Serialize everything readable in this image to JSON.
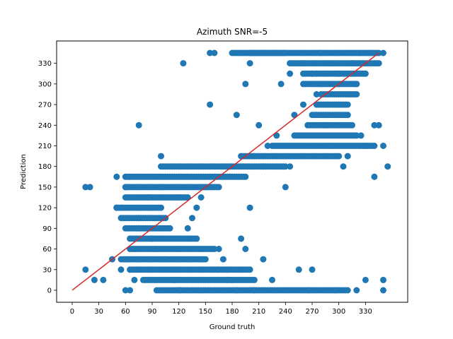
{
  "chart_data": {
    "type": "scatter",
    "title": "Azimuth SNR=-5",
    "xlabel": "Ground truth",
    "ylabel": "Prediction",
    "xlim": [
      -17.5,
      377.5
    ],
    "ylim": [
      -17.5,
      362.5
    ],
    "x_ticks": [
      0,
      30,
      60,
      90,
      120,
      150,
      180,
      210,
      240,
      270,
      300,
      330
    ],
    "y_ticks": [
      0,
      30,
      60,
      90,
      120,
      150,
      180,
      210,
      240,
      270,
      300,
      330
    ],
    "grid": false,
    "marker_color": "#1f77b4",
    "line_color": "#d62728",
    "reference_line": {
      "x": [
        0,
        345
      ],
      "y": [
        0,
        345
      ]
    },
    "points": [
      [
        15,
        30
      ],
      [
        15,
        150
      ],
      [
        20,
        150
      ],
      [
        25,
        15
      ],
      [
        35,
        15
      ],
      [
        45,
        45
      ],
      [
        50,
        165
      ],
      [
        50,
        120
      ],
      [
        55,
        120
      ],
      [
        60,
        150
      ],
      [
        65,
        165
      ],
      [
        55,
        30
      ],
      [
        60,
        0
      ],
      [
        65,
        0
      ],
      [
        70,
        15
      ],
      [
        70,
        60
      ],
      [
        75,
        90
      ],
      [
        75,
        105
      ],
      [
        80,
        105
      ],
      [
        85,
        135
      ],
      [
        90,
        75
      ],
      [
        95,
        60
      ],
      [
        100,
        195
      ],
      [
        100,
        150
      ],
      [
        105,
        45
      ],
      [
        110,
        30
      ],
      [
        115,
        15
      ],
      [
        120,
        0
      ],
      [
        125,
        330
      ],
      [
        130,
        90
      ],
      [
        135,
        105
      ],
      [
        140,
        120
      ],
      [
        145,
        135
      ],
      [
        150,
        150
      ],
      [
        155,
        270
      ],
      [
        155,
        345
      ],
      [
        160,
        345
      ],
      [
        160,
        165
      ],
      [
        165,
        60
      ],
      [
        170,
        45
      ],
      [
        175,
        30
      ],
      [
        180,
        15
      ],
      [
        185,
        0
      ],
      [
        190,
        75
      ],
      [
        195,
        60
      ],
      [
        200,
        120
      ],
      [
        205,
        195
      ],
      [
        210,
        240
      ],
      [
        215,
        180
      ],
      [
        220,
        210
      ],
      [
        230,
        225
      ],
      [
        240,
        150
      ],
      [
        245,
        180
      ],
      [
        250,
        255
      ],
      [
        255,
        30
      ],
      [
        260,
        270
      ],
      [
        265,
        0
      ],
      [
        270,
        30
      ],
      [
        275,
        285
      ],
      [
        280,
        300
      ],
      [
        285,
        240
      ],
      [
        290,
        210
      ],
      [
        295,
        0
      ],
      [
        300,
        315
      ],
      [
        305,
        180
      ],
      [
        310,
        195
      ],
      [
        315,
        330
      ],
      [
        320,
        300
      ],
      [
        325,
        225
      ],
      [
        330,
        210
      ],
      [
        335,
        345
      ],
      [
        340,
        240
      ],
      [
        345,
        240
      ],
      [
        350,
        210
      ],
      [
        350,
        345
      ],
      [
        350,
        0
      ],
      [
        350,
        15
      ],
      [
        355,
        180
      ],
      [
        75,
        240
      ],
      [
        165,
        30
      ],
      [
        175,
        15
      ],
      [
        185,
        255
      ],
      [
        195,
        300
      ],
      [
        200,
        330
      ],
      [
        205,
        0
      ],
      [
        215,
        45
      ],
      [
        225,
        15
      ],
      [
        235,
        300
      ],
      [
        245,
        315
      ],
      [
        260,
        330
      ],
      [
        270,
        315
      ],
      [
        280,
        345
      ],
      [
        290,
        330
      ],
      [
        300,
        300
      ],
      [
        310,
        255
      ],
      [
        320,
        0
      ],
      [
        330,
        15
      ],
      [
        340,
        165
      ]
    ],
    "clusters": [
      {
        "x": [
          50,
          100
        ],
        "y": [
          120,
          120
        ]
      },
      {
        "x": [
          55,
          105
        ],
        "y": [
          105,
          105
        ]
      },
      {
        "x": [
          60,
          110
        ],
        "y": [
          90,
          90
        ]
      },
      {
        "x": [
          60,
          130
        ],
        "y": [
          135,
          135
        ]
      },
      {
        "x": [
          60,
          165
        ],
        "y": [
          150,
          150
        ]
      },
      {
        "x": [
          60,
          195
        ],
        "y": [
          165,
          165
        ]
      },
      {
        "x": [
          65,
          140
        ],
        "y": [
          75,
          75
        ]
      },
      {
        "x": [
          65,
          160
        ],
        "y": [
          60,
          60
        ]
      },
      {
        "x": [
          55,
          150
        ],
        "y": [
          45,
          45
        ]
      },
      {
        "x": [
          65,
          200
        ],
        "y": [
          30,
          30
        ]
      },
      {
        "x": [
          80,
          205
        ],
        "y": [
          15,
          15
        ]
      },
      {
        "x": [
          95,
          310
        ],
        "y": [
          0,
          0
        ]
      },
      {
        "x": [
          100,
          240
        ],
        "y": [
          180,
          180
        ]
      },
      {
        "x": [
          190,
          300
        ],
        "y": [
          195,
          195
        ]
      },
      {
        "x": [
          225,
          340
        ],
        "y": [
          210,
          210
        ]
      },
      {
        "x": [
          250,
          320
        ],
        "y": [
          225,
          225
        ]
      },
      {
        "x": [
          265,
          315
        ],
        "y": [
          240,
          240
        ]
      },
      {
        "x": [
          270,
          310
        ],
        "y": [
          255,
          255
        ]
      },
      {
        "x": [
          275,
          310
        ],
        "y": [
          270,
          270
        ]
      },
      {
        "x": [
          280,
          320
        ],
        "y": [
          285,
          285
        ]
      },
      {
        "x": [
          260,
          320
        ],
        "y": [
          300,
          300
        ]
      },
      {
        "x": [
          260,
          330
        ],
        "y": [
          315,
          315
        ]
      },
      {
        "x": [
          245,
          345
        ],
        "y": [
          330,
          330
        ]
      },
      {
        "x": [
          200,
          345
        ],
        "y": [
          345,
          345
        ]
      },
      {
        "x": [
          180,
          240
        ],
        "y": [
          345,
          345
        ]
      }
    ]
  }
}
